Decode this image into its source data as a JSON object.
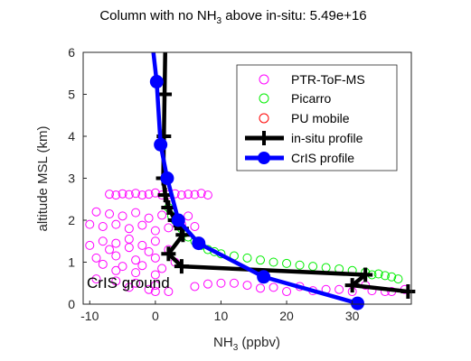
{
  "chart_data": {
    "type": "scatter",
    "title_main": "Column with no NH",
    "title_sub": "3",
    "title_tail": " above in-situ: 5.49e+16",
    "xlabel_main": "NH",
    "xlabel_sub": "3",
    "xlabel_tail": " (ppbv)",
    "ylabel": "altitude MSL (km)",
    "xlim": [
      -11,
      39
    ],
    "ylim": [
      0,
      6
    ],
    "xticks": [
      -10,
      0,
      10,
      20,
      30
    ],
    "yticks": [
      0,
      1,
      2,
      3,
      4,
      5,
      6
    ],
    "annotation": "CrIS ground",
    "legend_position": "top-right",
    "legend": [
      "PTR-ToF-MS",
      "Picarro",
      "PU mobile",
      "in-situ profile",
      "CrIS profile"
    ],
    "colors": {
      "ptr": "#ff00ff",
      "picarro": "#00ee00",
      "pu": "#ff0000",
      "insitu": "#000000",
      "cris": "#0000ff"
    },
    "series": [
      {
        "name": "PTR-ToF-MS",
        "marker": "open-circle",
        "x": [
          -7,
          -6,
          -5,
          -4,
          -3,
          -2,
          -1,
          0,
          1,
          2,
          3,
          4,
          5,
          6,
          7,
          8,
          -9,
          -7,
          -5,
          -3,
          -1,
          1,
          3,
          5,
          -8,
          -6,
          -4,
          -2,
          0,
          2,
          4,
          6,
          -10,
          -8,
          -6,
          -4,
          -2,
          0,
          -10,
          -7,
          -4,
          -1,
          2,
          -9,
          -6,
          -3,
          0,
          3,
          -8,
          -5,
          -2,
          1,
          -6,
          -3,
          0,
          -9,
          -6,
          -3,
          0,
          -4,
          -1,
          0,
          2,
          6,
          10,
          14,
          18,
          22,
          26,
          30,
          33,
          36,
          8,
          12,
          16,
          20,
          24,
          28,
          32,
          35,
          38
        ],
        "y": [
          2.62,
          2.6,
          2.63,
          2.61,
          2.64,
          2.6,
          2.62,
          2.65,
          2.6,
          2.61,
          2.63,
          2.6,
          2.62,
          2.61,
          2.64,
          2.6,
          2.2,
          2.15,
          2.1,
          2.18,
          2.05,
          2.12,
          2.0,
          2.1,
          1.85,
          1.9,
          1.8,
          1.88,
          1.75,
          1.82,
          1.9,
          1.85,
          1.9,
          1.5,
          1.45,
          1.55,
          1.4,
          1.5,
          1.4,
          1.3,
          1.35,
          1.25,
          1.3,
          1.1,
          1.15,
          1.05,
          1.1,
          1.0,
          0.95,
          0.9,
          0.92,
          0.85,
          0.8,
          0.75,
          0.7,
          0.6,
          0.55,
          0.5,
          0.45,
          0.4,
          0.35,
          0.3,
          0.3,
          0.42,
          0.5,
          0.45,
          0.4,
          0.42,
          0.35,
          0.3,
          0.32,
          0.3,
          0.48,
          0.5,
          0.38,
          0.3,
          0.32,
          0.35,
          0.45,
          0.3,
          0.35
        ]
      },
      {
        "name": "Picarro",
        "marker": "open-circle",
        "x": [
          2,
          2.5,
          3,
          3.5,
          4,
          4.5,
          5,
          6,
          7,
          8,
          9,
          10,
          12,
          14,
          16,
          18,
          20,
          22,
          24,
          26,
          28,
          30,
          32,
          34,
          36,
          37,
          33,
          35
        ],
        "y": [
          2.3,
          2.1,
          2.0,
          1.9,
          1.8,
          1.7,
          1.6,
          1.5,
          1.4,
          1.3,
          1.25,
          1.2,
          1.15,
          1.1,
          1.05,
          1.0,
          0.97,
          0.93,
          0.9,
          0.87,
          0.84,
          0.8,
          0.76,
          0.72,
          0.65,
          0.6,
          0.7,
          0.68
        ]
      },
      {
        "name": "PU mobile",
        "marker": "open-circle",
        "x": [],
        "y": []
      },
      {
        "name": "in-situ profile",
        "marker": "plus-line",
        "x": [
          1.5,
          1.4,
          1.3,
          1.2,
          1.5,
          2.0,
          3.0,
          4.0,
          4.2,
          2.0,
          4.0,
          32.0,
          30.0,
          38.5
        ],
        "y": [
          6.1,
          5.0,
          4.0,
          3.0,
          2.6,
          2.3,
          2.0,
          1.8,
          1.65,
          1.2,
          0.9,
          0.7,
          0.45,
          0.3
        ]
      },
      {
        "name": "CrIS profile",
        "marker": "filled-circle-line",
        "x": [
          -0.3,
          0.2,
          0.8,
          1.8,
          3.5,
          6.6,
          16.5,
          30.8
        ],
        "y": [
          6.1,
          5.3,
          3.8,
          3.0,
          2.0,
          1.45,
          0.65,
          0.02
        ]
      }
    ]
  }
}
